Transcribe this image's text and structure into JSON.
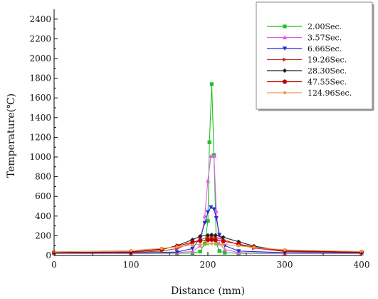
{
  "chart_data": {
    "type": "line",
    "title": "",
    "xlabel": "Distance (mm)",
    "ylabel": "Temperature(℃)",
    "xlim": [
      0,
      400
    ],
    "ylim": [
      0,
      2500
    ],
    "x_ticks": [
      0,
      100,
      200,
      300,
      400
    ],
    "y_ticks": [
      0,
      200,
      400,
      600,
      800,
      1000,
      1200,
      1400,
      1600,
      1800,
      2000,
      2200,
      2400
    ],
    "grid": false,
    "legend_position": "top-right",
    "series": [
      {
        "name": "2.00Sec.",
        "color": "#22c022",
        "marker": "square",
        "points": [
          [
            0,
            20
          ],
          [
            100,
            20
          ],
          [
            160,
            22
          ],
          [
            180,
            25
          ],
          [
            190,
            40
          ],
          [
            196,
            120
          ],
          [
            200,
            350
          ],
          [
            202,
            1150
          ],
          [
            205,
            1740
          ],
          [
            208,
            1020
          ],
          [
            211,
            120
          ],
          [
            215,
            45
          ],
          [
            222,
            28
          ],
          [
            240,
            22
          ],
          [
            300,
            20
          ],
          [
            400,
            20
          ]
        ]
      },
      {
        "name": "3.57Sec.",
        "color": "#e060e0",
        "marker": "triangle-up",
        "points": [
          [
            0,
            22
          ],
          [
            100,
            22
          ],
          [
            160,
            30
          ],
          [
            180,
            40
          ],
          [
            190,
            100
          ],
          [
            196,
            400
          ],
          [
            200,
            760
          ],
          [
            204,
            1010
          ],
          [
            208,
            1010
          ],
          [
            211,
            450
          ],
          [
            215,
            120
          ],
          [
            222,
            60
          ],
          [
            240,
            30
          ],
          [
            300,
            22
          ],
          [
            400,
            22
          ]
        ]
      },
      {
        "name": "6.66Sec.",
        "color": "#2828d8",
        "marker": "triangle-down",
        "points": [
          [
            0,
            25
          ],
          [
            100,
            25
          ],
          [
            160,
            35
          ],
          [
            180,
            70
          ],
          [
            190,
            180
          ],
          [
            196,
            330
          ],
          [
            200,
            440
          ],
          [
            204,
            490
          ],
          [
            208,
            470
          ],
          [
            211,
            380
          ],
          [
            215,
            210
          ],
          [
            222,
            100
          ],
          [
            240,
            45
          ],
          [
            300,
            28
          ],
          [
            400,
            25
          ]
        ]
      },
      {
        "name": "19.26Sec.",
        "color": "#cc3030",
        "marker": "triangle-right",
        "points": [
          [
            0,
            28
          ],
          [
            100,
            30
          ],
          [
            140,
            45
          ],
          [
            160,
            70
          ],
          [
            180,
            130
          ],
          [
            190,
            160
          ],
          [
            200,
            185
          ],
          [
            205,
            190
          ],
          [
            210,
            185
          ],
          [
            220,
            160
          ],
          [
            240,
            110
          ],
          [
            260,
            75
          ],
          [
            300,
            40
          ],
          [
            400,
            30
          ]
        ]
      },
      {
        "name": "28.30Sec.",
        "color": "#222222",
        "marker": "diamond",
        "points": [
          [
            0,
            30
          ],
          [
            100,
            35
          ],
          [
            140,
            60
          ],
          [
            160,
            100
          ],
          [
            180,
            160
          ],
          [
            190,
            195
          ],
          [
            200,
            205
          ],
          [
            205,
            210
          ],
          [
            210,
            205
          ],
          [
            220,
            185
          ],
          [
            240,
            140
          ],
          [
            260,
            95
          ],
          [
            300,
            45
          ],
          [
            400,
            32
          ]
        ]
      },
      {
        "name": "47.55Sec.",
        "color": "#c00000",
        "marker": "circle",
        "points": [
          [
            0,
            30
          ],
          [
            100,
            38
          ],
          [
            140,
            65
          ],
          [
            160,
            95
          ],
          [
            180,
            135
          ],
          [
            190,
            150
          ],
          [
            200,
            158
          ],
          [
            205,
            160
          ],
          [
            210,
            157
          ],
          [
            220,
            145
          ],
          [
            240,
            115
          ],
          [
            260,
            85
          ],
          [
            300,
            48
          ],
          [
            400,
            35
          ]
        ]
      },
      {
        "name": "124.96Sec.",
        "color": "#e0a050",
        "marker": "star",
        "points": [
          [
            0,
            38
          ],
          [
            100,
            50
          ],
          [
            140,
            72
          ],
          [
            160,
            88
          ],
          [
            180,
            105
          ],
          [
            190,
            112
          ],
          [
            200,
            118
          ],
          [
            205,
            120
          ],
          [
            210,
            118
          ],
          [
            220,
            112
          ],
          [
            240,
            98
          ],
          [
            260,
            82
          ],
          [
            300,
            58
          ],
          [
            400,
            40
          ]
        ]
      }
    ]
  }
}
